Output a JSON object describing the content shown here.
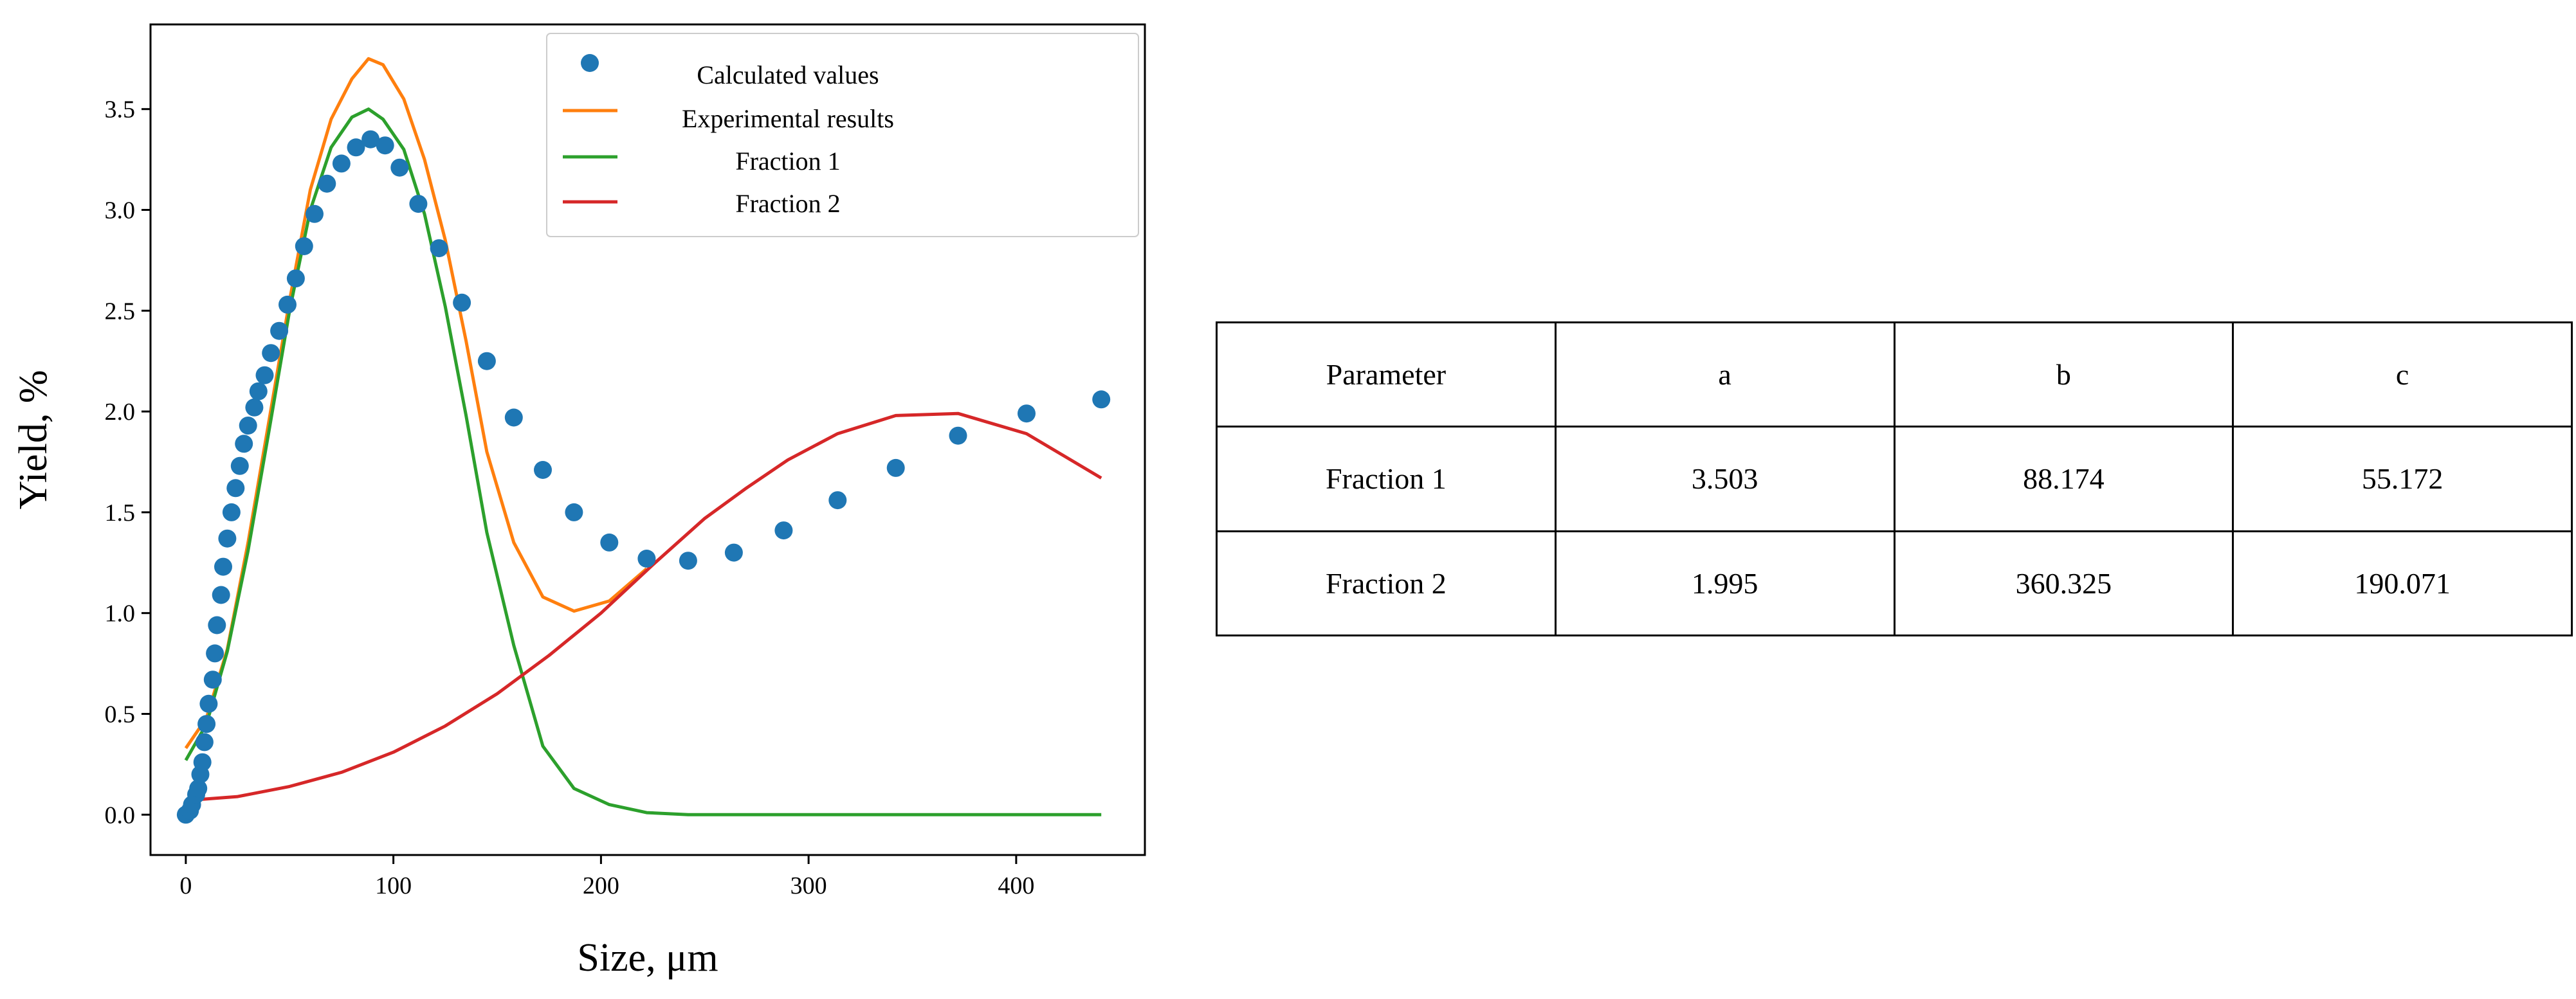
{
  "chart_data": [
    {
      "type": "line",
      "title": "",
      "xlabel": "Size, μm",
      "ylabel": "Yield, %",
      "xlim": [
        -17,
        462
      ],
      "ylim": [
        -0.2,
        3.92
      ],
      "x_ticks": [
        0,
        100,
        200,
        300,
        400
      ],
      "y_ticks": [
        0.0,
        0.5,
        1.0,
        1.5,
        2.0,
        2.5,
        3.0,
        3.5
      ],
      "x_tick_labels": [
        "0",
        "100",
        "200",
        "300",
        "400"
      ],
      "y_tick_labels": [
        "0.0",
        "0.5",
        "1.0",
        "1.5",
        "2.0",
        "2.5",
        "3.0",
        "3.5"
      ],
      "grid": false,
      "legend_position": "top-right",
      "series": [
        {
          "name": "Calculated values",
          "kind": "scatter",
          "color": "#1f77b4",
          "points": [
            [
              0,
              0.0
            ],
            [
              2,
              0.02
            ],
            [
              3,
              0.05
            ],
            [
              5,
              0.1
            ],
            [
              6,
              0.13
            ],
            [
              7,
              0.2
            ],
            [
              8,
              0.26
            ],
            [
              9,
              0.36
            ],
            [
              10,
              0.45
            ],
            [
              11,
              0.55
            ],
            [
              13,
              0.67
            ],
            [
              14,
              0.8
            ],
            [
              15,
              0.94
            ],
            [
              17,
              1.09
            ],
            [
              18,
              1.23
            ],
            [
              20,
              1.37
            ],
            [
              22,
              1.5
            ],
            [
              24,
              1.62
            ],
            [
              26,
              1.73
            ],
            [
              28,
              1.84
            ],
            [
              30,
              1.93
            ],
            [
              33,
              2.02
            ],
            [
              35,
              2.1
            ],
            [
              38,
              2.18
            ],
            [
              41,
              2.29
            ],
            [
              45,
              2.4
            ],
            [
              49,
              2.53
            ],
            [
              53,
              2.66
            ],
            [
              57,
              2.82
            ],
            [
              62,
              2.98
            ],
            [
              68,
              3.13
            ],
            [
              75,
              3.23
            ],
            [
              82,
              3.31
            ],
            [
              89,
              3.35
            ],
            [
              96,
              3.32
            ],
            [
              103,
              3.21
            ],
            [
              112,
              3.03
            ],
            [
              122,
              2.81
            ],
            [
              133,
              2.54
            ],
            [
              145,
              2.25
            ],
            [
              158,
              1.97
            ],
            [
              172,
              1.71
            ],
            [
              187,
              1.5
            ],
            [
              204,
              1.35
            ],
            [
              222,
              1.27
            ],
            [
              242,
              1.26
            ],
            [
              264,
              1.3
            ],
            [
              288,
              1.41
            ],
            [
              314,
              1.56
            ],
            [
              342,
              1.72
            ],
            [
              372,
              1.88
            ],
            [
              405,
              1.99
            ],
            [
              441,
              2.06
            ]
          ]
        },
        {
          "name": "Experimental results",
          "kind": "line",
          "color": "#ff7f0e",
          "points": [
            [
              0,
              0.33
            ],
            [
              10,
              0.48
            ],
            [
              20,
              0.82
            ],
            [
              30,
              1.35
            ],
            [
              40,
              1.95
            ],
            [
              50,
              2.55
            ],
            [
              60,
              3.1
            ],
            [
              70,
              3.45
            ],
            [
              80,
              3.65
            ],
            [
              88,
              3.75
            ],
            [
              95,
              3.72
            ],
            [
              105,
              3.55
            ],
            [
              115,
              3.25
            ],
            [
              125,
              2.85
            ],
            [
              135,
              2.35
            ],
            [
              145,
              1.8
            ],
            [
              158,
              1.35
            ],
            [
              172,
              1.08
            ],
            [
              187,
              1.01
            ],
            [
              204,
              1.06
            ],
            [
              222,
              1.22
            ]
          ]
        },
        {
          "name": "Fraction 1",
          "kind": "line",
          "color": "#2ca02c",
          "points": [
            [
              0,
              0.27
            ],
            [
              10,
              0.45
            ],
            [
              20,
              0.81
            ],
            [
              30,
              1.31
            ],
            [
              40,
              1.9
            ],
            [
              50,
              2.5
            ],
            [
              60,
              3.0
            ],
            [
              70,
              3.31
            ],
            [
              80,
              3.46
            ],
            [
              88,
              3.5
            ],
            [
              95,
              3.45
            ],
            [
              105,
              3.3
            ],
            [
              115,
              2.98
            ],
            [
              125,
              2.52
            ],
            [
              135,
              1.98
            ],
            [
              145,
              1.4
            ],
            [
              158,
              0.84
            ],
            [
              172,
              0.34
            ],
            [
              187,
              0.13
            ],
            [
              204,
              0.05
            ],
            [
              222,
              0.01
            ],
            [
              242,
              0.0
            ],
            [
              300,
              0.0
            ],
            [
              400,
              0.0
            ],
            [
              441,
              0.0
            ]
          ]
        },
        {
          "name": "Fraction 2",
          "kind": "line",
          "color": "#d62728",
          "points": [
            [
              0,
              0.07
            ],
            [
              25,
              0.09
            ],
            [
              50,
              0.14
            ],
            [
              75,
              0.21
            ],
            [
              100,
              0.31
            ],
            [
              125,
              0.44
            ],
            [
              150,
              0.6
            ],
            [
              175,
              0.79
            ],
            [
              200,
              1.0
            ],
            [
              225,
              1.24
            ],
            [
              250,
              1.47
            ],
            [
              270,
              1.62
            ],
            [
              290,
              1.76
            ],
            [
              314,
              1.89
            ],
            [
              342,
              1.98
            ],
            [
              372,
              1.99
            ],
            [
              405,
              1.89
            ],
            [
              441,
              1.67
            ]
          ]
        }
      ]
    }
  ],
  "table": {
    "headers": [
      "Parameter",
      "a",
      "b",
      "c"
    ],
    "rows": [
      [
        "Fraction 1",
        "3.503",
        "88.174",
        "55.172"
      ],
      [
        "Fraction 2",
        "1.995",
        "360.325",
        "190.071"
      ]
    ]
  }
}
